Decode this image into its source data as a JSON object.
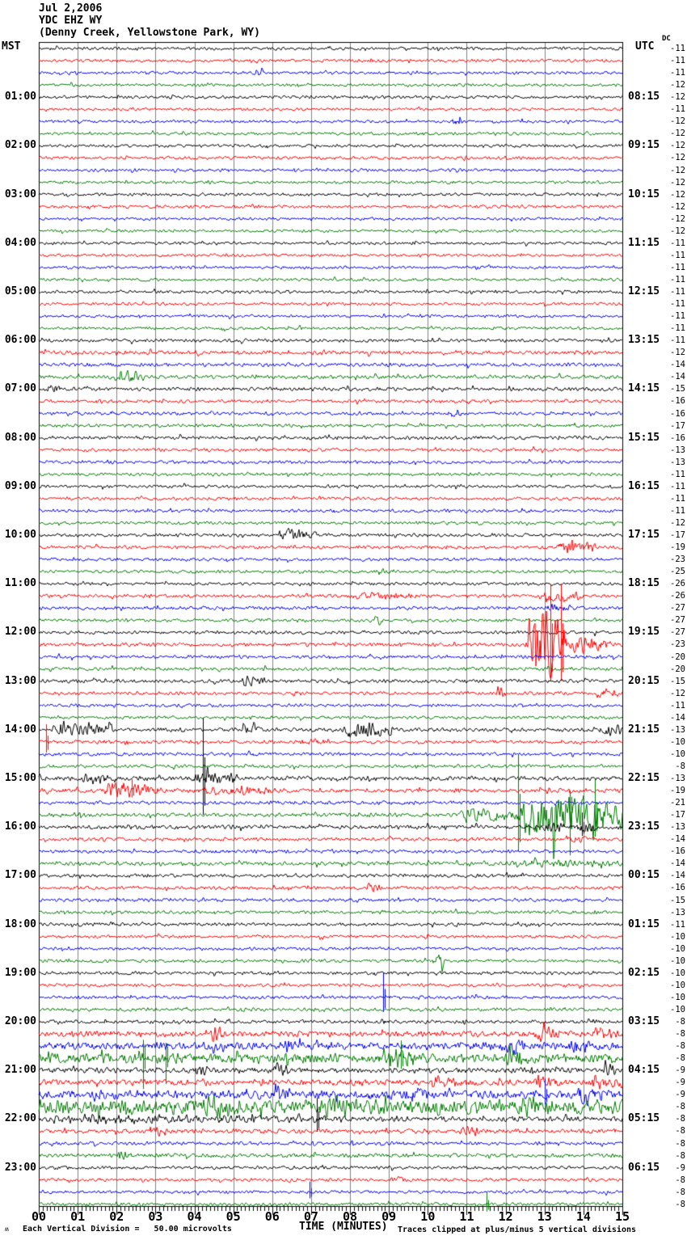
{
  "header": {
    "date": "Jul 2,2006",
    "station": "YDC EHZ WY",
    "location": "(Denny Creek, Yellowstone Park, WY)"
  },
  "axes": {
    "left_label": "MST",
    "right_label": "UTC",
    "dc_label": "DC",
    "x_label": "TIME (MINUTES)"
  },
  "footer": {
    "division_note": "Each Vertical Division =   50.00 microvolts",
    "clip_note": "Traces clipped at plus/minus 5 vertical divisions",
    "mark": "ʍ"
  },
  "chart_data": {
    "type": "line",
    "subtype": "helicorder-seismogram",
    "title": "YDC EHZ WY (Denny Creek, Yellowstone Park, WY) Jul 2,2006",
    "xlabel": "TIME (MINUTES)",
    "x_range": [
      0,
      15
    ],
    "x_ticks": [
      "00",
      "01",
      "02",
      "03",
      "04",
      "05",
      "06",
      "07",
      "08",
      "09",
      "10",
      "11",
      "12",
      "13",
      "14",
      "15"
    ],
    "minutes_per_line": 15,
    "lines_per_hour": 4,
    "num_traces": 96,
    "label_every_n_traces": 4,
    "first_labeled_trace_index": 4,
    "trace_color_cycle": [
      "#000000",
      "#ff0000",
      "#0000ee",
      "#007a00"
    ],
    "grid_color": "#808080",
    "microvolts_per_division": 50.0,
    "clip_divisions": 5,
    "left_time_labels": [
      "01:00",
      "02:00",
      "03:00",
      "04:00",
      "05:00",
      "06:00",
      "07:00",
      "08:00",
      "09:00",
      "10:00",
      "11:00",
      "12:00",
      "13:00",
      "14:00",
      "15:00",
      "16:00",
      "17:00",
      "18:00",
      "19:00",
      "20:00",
      "21:00",
      "22:00",
      "23:00"
    ],
    "right_time_labels": [
      "08:15",
      "09:15",
      "10:15",
      "11:15",
      "12:15",
      "13:15",
      "14:15",
      "15:15",
      "16:15",
      "17:15",
      "18:15",
      "19:15",
      "20:15",
      "21:15",
      "22:15",
      "23:15",
      "00:15",
      "01:15",
      "02:15",
      "03:15",
      "04:15",
      "05:15",
      "06:15"
    ],
    "dc_offsets": [
      -11,
      -11,
      -11,
      -12,
      -12,
      -11,
      -12,
      -12,
      -12,
      -12,
      -12,
      -12,
      -12,
      -12,
      -12,
      -12,
      -11,
      -11,
      -11,
      -11,
      -11,
      -11,
      -11,
      -11,
      -11,
      -12,
      -14,
      -14,
      -15,
      -16,
      -16,
      -17,
      -16,
      -13,
      -13,
      -11,
      -11,
      -11,
      -11,
      -12,
      -17,
      -19,
      -23,
      -25,
      -26,
      -26,
      -27,
      -27,
      -27,
      -23,
      -20,
      -20,
      -15,
      -12,
      -11,
      -14,
      -13,
      -10,
      -10,
      -8,
      -13,
      -19,
      -21,
      -17,
      -13,
      -14,
      -16,
      -14,
      -14,
      -16,
      -15,
      -13,
      -11,
      -10,
      -10,
      -10,
      -10,
      -10,
      -10,
      -10,
      -8,
      -8,
      -8,
      -8,
      -9,
      -9,
      -9,
      -8,
      -8,
      -8,
      -8,
      -8,
      -9,
      -8,
      -8,
      -8
    ],
    "traces": [
      {
        "a": 1.4
      },
      {
        "a": 1.4
      },
      {
        "a": 1.3,
        "e": [
          [
            5.5,
            5.8,
            4
          ]
        ]
      },
      {
        "a": 1.3
      },
      {
        "a": 1.4
      },
      {
        "a": 1.3
      },
      {
        "a": 1.3,
        "e": [
          [
            10.6,
            10.9,
            3.5
          ]
        ]
      },
      {
        "a": 1.3
      },
      {
        "a": 1.4
      },
      {
        "a": 1.4
      },
      {
        "a": 1.3
      },
      {
        "a": 1.3
      },
      {
        "a": 1.3
      },
      {
        "a": 1.4
      },
      {
        "a": 1.3
      },
      {
        "a": 1.3
      },
      {
        "a": 1.3
      },
      {
        "a": 1.3
      },
      {
        "a": 1.3
      },
      {
        "a": 1.3
      },
      {
        "a": 1.4
      },
      {
        "a": 1.3
      },
      {
        "a": 1.3
      },
      {
        "a": 1.3
      },
      {
        "a": 1.5
      },
      {
        "a": 1.7
      },
      {
        "a": 1.7
      },
      {
        "a": 1.7,
        "e": [
          [
            1.9,
            2.7,
            5
          ]
        ]
      },
      {
        "a": 1.6,
        "e": [
          [
            0.2,
            0.6,
            3
          ]
        ]
      },
      {
        "a": 1.5
      },
      {
        "a": 1.5,
        "e": [
          [
            10.5,
            10.9,
            3
          ]
        ]
      },
      {
        "a": 1.5
      },
      {
        "a": 1.6
      },
      {
        "a": 1.5
      },
      {
        "a": 1.4
      },
      {
        "a": 1.4
      },
      {
        "a": 1.4
      },
      {
        "a": 1.4
      },
      {
        "a": 1.4
      },
      {
        "a": 1.4
      },
      {
        "a": 1.5,
        "e": [
          [
            6.1,
            7.2,
            5
          ]
        ]
      },
      {
        "a": 1.5,
        "e": [
          [
            13.3,
            14.3,
            7
          ]
        ]
      },
      {
        "a": 1.4
      },
      {
        "a": 1.4,
        "e": [
          [
            8.7,
            8.95,
            3
          ]
        ]
      },
      {
        "a": 1.4
      },
      {
        "a": 1.5,
        "e": [
          [
            8.0,
            9.8,
            2.2
          ],
          [
            12.9,
            14.0,
            4.5
          ]
        ]
      },
      {
        "a": 1.5,
        "e": [
          [
            13.0,
            13.8,
            3
          ]
        ]
      },
      {
        "a": 1.4,
        "e": [
          [
            8.6,
            8.9,
            3.5
          ]
        ]
      },
      {
        "a": 1.5
      },
      {
        "a": 1.6,
        "e": [
          [
            12.5,
            13.6,
            40
          ],
          [
            13.6,
            14.7,
            7
          ]
        ],
        "s": [
          [
            13.15,
            80
          ],
          [
            13.42,
            80
          ]
        ]
      },
      {
        "a": 1.5
      },
      {
        "a": 1.5
      },
      {
        "a": 1.6,
        "e": [
          [
            5.2,
            5.8,
            4
          ]
        ]
      },
      {
        "a": 1.5,
        "e": [
          [
            11.75,
            12.0,
            5
          ],
          [
            14.3,
            14.9,
            3.5
          ]
        ]
      },
      {
        "a": 1.4
      },
      {
        "a": 1.4
      },
      {
        "a": 1.8,
        "e": [
          [
            0.3,
            1.9,
            6
          ],
          [
            5.2,
            5.7,
            3
          ],
          [
            7.8,
            9.1,
            7
          ],
          [
            14.4,
            15,
            4.5
          ]
        ]
      },
      {
        "a": 1.6,
        "e": [
          [
            6.7,
            7.4,
            2.5
          ]
        ],
        "s": [
          [
            0.18,
            22
          ]
        ]
      },
      {
        "a": 1.5
      },
      {
        "a": 1.5
      },
      {
        "a": 2.0,
        "e": [
          [
            1.1,
            2.0,
            4
          ],
          [
            3.9,
            5.1,
            6
          ]
        ],
        "s": [
          [
            4.22,
            85
          ]
        ]
      },
      {
        "a": 1.9,
        "e": [
          [
            1.6,
            3.2,
            5
          ],
          [
            4.0,
            6.3,
            3
          ]
        ],
        "s": [
          [
            2.38,
            14
          ]
        ]
      },
      {
        "a": 1.6
      },
      {
        "a": 1.7,
        "e": [
          [
            10.8,
            12.2,
            6
          ],
          [
            12.2,
            15,
            22
          ]
        ],
        "s": [
          [
            12.32,
            75
          ],
          [
            13.65,
            -50
          ],
          [
            14.3,
            45
          ]
        ]
      },
      {
        "a": 1.8,
        "e": [
          [
            12.9,
            13.5,
            4
          ],
          [
            13.8,
            14.3,
            5
          ]
        ],
        "s": [
          [
            13.97,
            18
          ]
        ]
      },
      {
        "a": 1.6,
        "e": [
          [
            13.5,
            14.1,
            2.5
          ]
        ]
      },
      {
        "a": 1.5
      },
      {
        "a": 1.7,
        "e": [
          [
            12.0,
            15.0,
            2.2
          ]
        ]
      },
      {
        "a": 1.5
      },
      {
        "a": 1.5,
        "e": [
          [
            8.4,
            8.8,
            3
          ]
        ]
      },
      {
        "a": 1.5
      },
      {
        "a": 1.5
      },
      {
        "a": 1.5
      },
      {
        "a": 1.4
      },
      {
        "a": 1.4
      },
      {
        "a": 1.5,
        "e": [
          [
            10.1,
            10.45,
            5.5
          ]
        ]
      },
      {
        "a": 1.5
      },
      {
        "a": 1.5
      },
      {
        "a": 1.5,
        "s": [
          [
            8.85,
            30
          ]
        ]
      },
      {
        "a": 1.5
      },
      {
        "a": 1.6,
        "e": [
          [
            8.7,
            9.0,
            2.5
          ]
        ]
      },
      {
        "a": 2.6,
        "e": [
          [
            4.4,
            4.8,
            5
          ],
          [
            12.8,
            13.4,
            4.5
          ],
          [
            14.2,
            14.9,
            3.5
          ]
        ]
      },
      {
        "a": 3.4,
        "e": [
          [
            6.3,
            6.6,
            4
          ],
          [
            11.9,
            12.5,
            5
          ],
          [
            13.6,
            14.2,
            4
          ]
        ]
      },
      {
        "a": 4.4,
        "e": [
          [
            8.9,
            9.7,
            6
          ],
          [
            12.0,
            12.6,
            7
          ]
        ],
        "s": [
          [
            2.68,
            -38
          ],
          [
            3.26,
            -32
          ],
          [
            9.3,
            22
          ]
        ]
      },
      {
        "a": 2.4,
        "e": [
          [
            4.0,
            4.4,
            4
          ],
          [
            6.0,
            6.4,
            5
          ],
          [
            14.5,
            14.9,
            5
          ]
        ]
      },
      {
        "a": 2.7,
        "e": [
          [
            10.1,
            10.7,
            4
          ],
          [
            12.7,
            13.3,
            4
          ],
          [
            14.2,
            15,
            4.5
          ]
        ]
      },
      {
        "a": 3.8,
        "e": [
          [
            6.0,
            6.5,
            5
          ],
          [
            9.4,
            10.0,
            6
          ],
          [
            13.8,
            14.5,
            7
          ]
        ],
        "s": [
          [
            13.0,
            20
          ]
        ]
      },
      {
        "a": 6.5,
        "e": [
          [
            4.2,
            5.2,
            4
          ],
          [
            7.2,
            8.2,
            4
          ],
          [
            12.4,
            13.2,
            4
          ]
        ]
      },
      {
        "a": 2.2,
        "e": [
          [
            0,
            7.9,
            2.2
          ]
        ],
        "s": [
          [
            7.15,
            26
          ]
        ]
      },
      {
        "a": 2.0,
        "e": [
          [
            2.8,
            3.2,
            4
          ],
          [
            10.8,
            11.3,
            3.5
          ]
        ]
      },
      {
        "a": 1.6
      },
      {
        "a": 1.8,
        "e": [
          [
            2.0,
            2.4,
            3.5
          ]
        ]
      },
      {
        "a": 1.5
      },
      {
        "a": 1.5,
        "e": [
          [
            9.0,
            9.4,
            2.5
          ]
        ]
      },
      {
        "a": 1.4,
        "s": [
          [
            6.95,
            13
          ]
        ]
      },
      {
        "a": 1.5,
        "s": [
          [
            11.5,
            15
          ]
        ]
      }
    ]
  }
}
